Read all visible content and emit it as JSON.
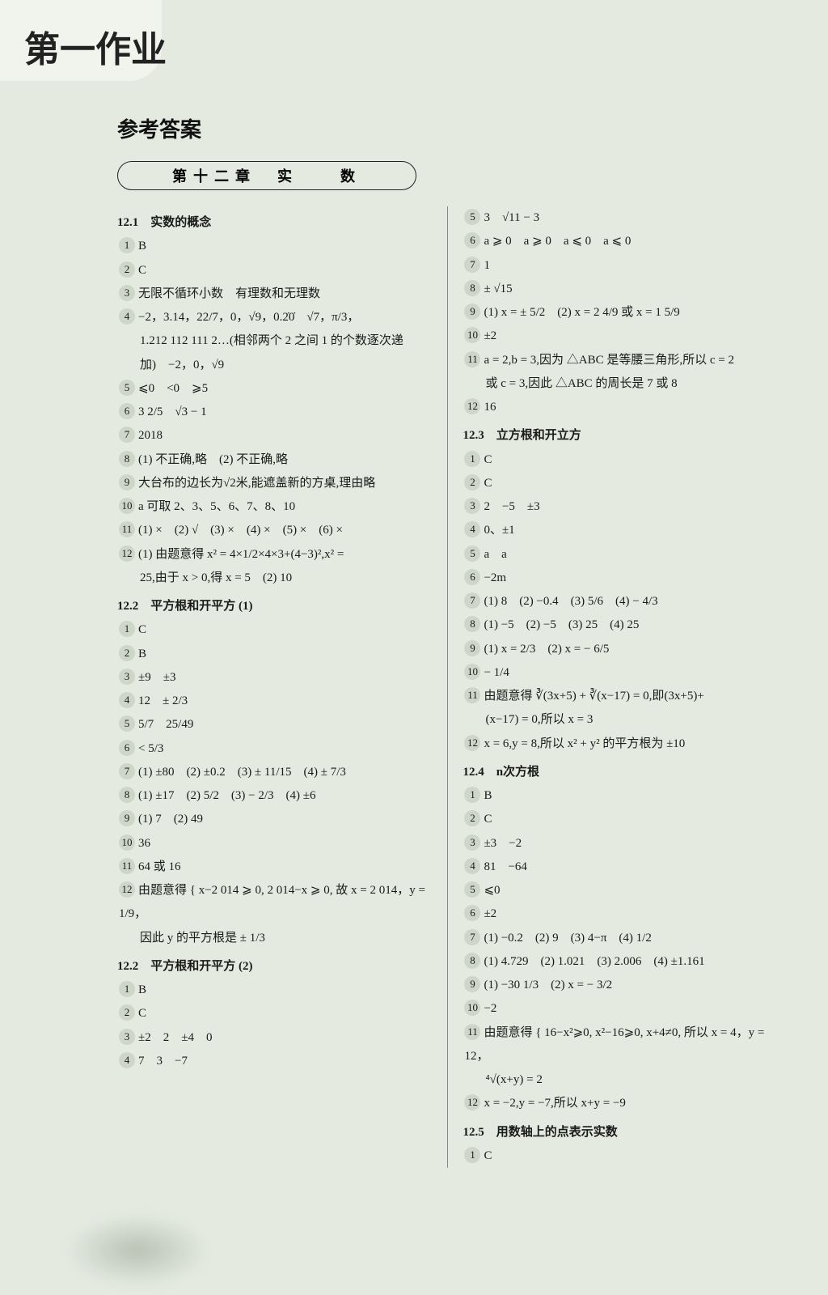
{
  "header": {
    "brush_title": "第一作业"
  },
  "main_heading": "参考答案",
  "chapter_box": "第十二章　实　　数",
  "left": {
    "s121": "12.1　实数的概念",
    "l": [
      "B",
      "C",
      "无限不循环小数　有理数和无理数",
      "−2，3.14，22/7，0，√9，0.2̇0̇　√7，π/3，",
      "1.212 112 111 2…(相邻两个 2 之间 1 的个数逐次递",
      "加)　−2，0，√9",
      "⩽0　<0　⩾5",
      "3 2/5　√3 − 1",
      "2018",
      "(1) 不正确,略　(2) 不正确,略",
      "大台布的边长为√2米,能遮盖新的方桌,理由略",
      "a 可取 2、3、5、6、7、8、10",
      "(1) ×　(2) √　(3) ×　(4) ×　(5) ×　(6) ×",
      "(1) 由题意得 x² = 4×1/2×4×3+(4−3)²,x² =",
      "25,由于 x > 0,得 x = 5　(2) 10"
    ],
    "s122a": "12.2　平方根和开平方 (1)",
    "la": [
      "C",
      "B",
      "±9　±3",
      "12　± 2/3",
      "5/7　25/49",
      "< 5/3",
      "(1) ±80　(2) ±0.2　(3) ± 11/15　(4) ± 7/3",
      "(1) ±17　(2) 5/2　(3) − 2/3　(4) ±6",
      "(1) 7　(2) 49",
      "36",
      "64 或 16",
      "由题意得 { x−2 014 ⩾ 0, 2 014−x ⩾ 0, 故 x = 2 014，y = 1/9，",
      "因此 y 的平方根是 ± 1/3"
    ],
    "s122b": "12.2　平方根和开平方 (2)",
    "lb": [
      "B",
      "C",
      "±2　2　±4　0",
      "7　3　−7"
    ]
  },
  "right": {
    "top": [
      "3　√11 − 3",
      "a ⩾ 0　a ⩾ 0　a ⩽ 0　a ⩽ 0",
      "1",
      "± √15",
      "(1) x = ± 5/2　(2) x = 2 4/9 或 x = 1 5/9",
      "±2",
      "a = 2,b = 3,因为 △ABC 是等腰三角形,所以 c = 2",
      "或 c = 3,因此 △ABC 的周长是 7 或 8",
      "16"
    ],
    "s123": "12.3　立方根和开立方",
    "l3": [
      "C",
      "C",
      "2　−5　±3",
      "0、±1",
      "a　a",
      "−2m",
      "(1) 8　(2) −0.4　(3) 5/6　(4) − 4/3",
      "(1) −5　(2) −5　(3) 25　(4) 25",
      "(1) x = 2/3　(2) x = − 6/5",
      "− 1/4",
      "由题意得 ∛(3x+5) + ∛(x−17) = 0,即(3x+5)+",
      "(x−17) = 0,所以 x = 3",
      "x = 6,y = 8,所以 x² + y² 的平方根为 ±10"
    ],
    "s124": "12.4　n次方根",
    "l4": [
      "B",
      "C",
      "±3　−2",
      "81　−64",
      "⩽0",
      "±2",
      "(1) −0.2　(2) 9　(3) 4−π　(4) 1/2",
      "(1) 4.729　(2) 1.021　(3) 2.006　(4) ±1.161",
      "(1) −30 1/3　(2) x = − 3/2",
      "−2",
      "由题意得 { 16−x²⩾0, x²−16⩾0, x+4≠0, 所以 x = 4，y = 12，",
      "⁴√(x+y) = 2",
      "x = −2,y = −7,所以 x+y = −9"
    ],
    "s125": "12.5　用数轴上的点表示实数",
    "l5": [
      "C"
    ]
  }
}
